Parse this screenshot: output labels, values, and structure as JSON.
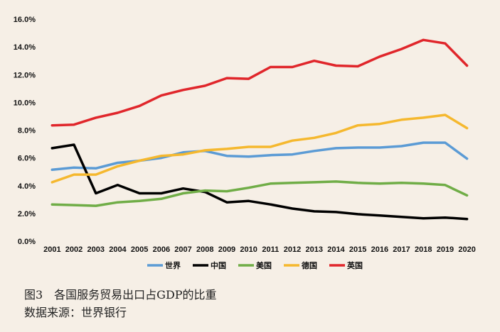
{
  "chart_data": {
    "type": "line",
    "title": "图3　各国服务贸易出口占GDP的比重",
    "source": "数据来源：世界银行",
    "xlabel": "",
    "ylabel": "",
    "ylim": [
      0,
      16
    ],
    "y_ticks": [
      0,
      2,
      4,
      6,
      8,
      10,
      12,
      14,
      16
    ],
    "y_tick_labels": [
      "0.0%",
      "2.0%",
      "4.0%",
      "6.0%",
      "8.0%",
      "10.0%",
      "12.0%",
      "14.0%",
      "16.0%"
    ],
    "categories": [
      "2001",
      "2002",
      "2003",
      "2004",
      "2005",
      "2006",
      "2007",
      "2008",
      "2009",
      "2010",
      "2011",
      "2012",
      "2013",
      "2014",
      "2015",
      "2016",
      "2017",
      "2018",
      "2019",
      "2020"
    ],
    "grid": false,
    "legend_position": "bottom-center",
    "series": [
      {
        "name": "世界",
        "color": "#5b9bd5",
        "values": [
          5.15,
          5.3,
          5.25,
          5.65,
          5.8,
          6.0,
          6.4,
          6.5,
          6.15,
          6.1,
          6.2,
          6.25,
          6.5,
          6.7,
          6.75,
          6.75,
          6.85,
          7.1,
          7.1,
          5.95
        ]
      },
      {
        "name": "中国",
        "color": "#000000",
        "values": [
          6.7,
          6.95,
          3.45,
          4.05,
          3.45,
          3.45,
          3.8,
          3.55,
          2.8,
          2.9,
          2.65,
          2.35,
          2.15,
          2.1,
          1.95,
          1.85,
          1.75,
          1.65,
          1.7,
          1.6
        ]
      },
      {
        "name": "美国",
        "color": "#70ad47",
        "values": [
          2.65,
          2.6,
          2.55,
          2.8,
          2.9,
          3.05,
          3.45,
          3.65,
          3.6,
          3.85,
          4.15,
          4.2,
          4.25,
          4.3,
          4.2,
          4.15,
          4.2,
          4.15,
          4.05,
          3.3
        ]
      },
      {
        "name": "德国",
        "color": "#f5b82e",
        "values": [
          4.25,
          4.8,
          4.8,
          5.4,
          5.8,
          6.15,
          6.25,
          6.55,
          6.65,
          6.8,
          6.8,
          7.25,
          7.45,
          7.8,
          8.35,
          8.45,
          8.75,
          8.9,
          9.1,
          8.15
        ]
      },
      {
        "name": "英国",
        "color": "#e0262b",
        "values": [
          8.35,
          8.4,
          8.9,
          9.25,
          9.75,
          10.5,
          10.9,
          11.2,
          11.75,
          11.7,
          12.55,
          12.55,
          13.0,
          12.65,
          12.6,
          13.3,
          13.85,
          14.5,
          14.25,
          12.65
        ]
      }
    ]
  }
}
